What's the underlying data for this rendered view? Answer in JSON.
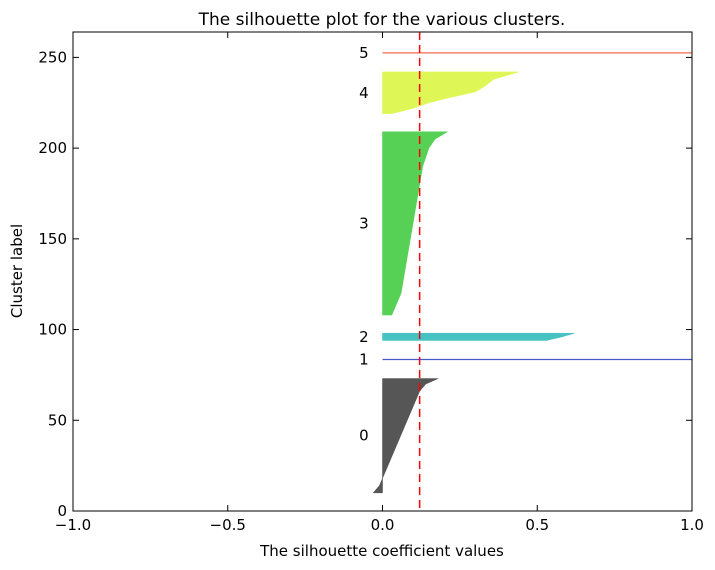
{
  "chart_data": {
    "type": "area",
    "title": "The silhouette plot for the various clusters.",
    "xlabel": "The silhouette coefficient values",
    "ylabel": "Cluster label",
    "xlim": [
      -1.0,
      1.0
    ],
    "ylim": [
      0,
      264
    ],
    "xticks": [
      "−1.0",
      "−0.5",
      "0.0",
      "0.5",
      "1.0"
    ],
    "xtick_values": [
      -1.0,
      -0.5,
      0.0,
      0.5,
      1.0
    ],
    "yticks": [
      "0",
      "50",
      "100",
      "150",
      "200",
      "250"
    ],
    "ytick_values": [
      0,
      50,
      100,
      150,
      200,
      250
    ],
    "grid": false,
    "average_silhouette": 0.12,
    "average_line_color": "#ff0000",
    "series": [
      {
        "name": "0",
        "color": "#4d4d4d",
        "y": [
          10,
          14,
          18,
          22,
          26,
          30,
          34,
          38,
          42,
          46,
          50,
          54,
          58,
          62,
          66,
          70,
          73
        ],
        "x": [
          -0.03,
          -0.01,
          0.0,
          0.01,
          0.02,
          0.03,
          0.04,
          0.05,
          0.06,
          0.07,
          0.08,
          0.09,
          0.1,
          0.11,
          0.12,
          0.14,
          0.18
        ]
      },
      {
        "name": "1",
        "color": "#4758c7",
        "y": [
          83,
          84
        ],
        "x": [
          1.0,
          1.0
        ]
      },
      {
        "name": "2",
        "color": "#3dbfbf",
        "y": [
          94,
          96,
          98
        ],
        "x": [
          0.53,
          0.58,
          0.62
        ]
      },
      {
        "name": "3",
        "color": "#4dcf4d",
        "y": [
          108,
          112,
          120,
          130,
          140,
          150,
          160,
          170,
          180,
          190,
          195,
          200,
          205,
          209
        ],
        "x": [
          0.03,
          0.04,
          0.06,
          0.07,
          0.08,
          0.09,
          0.1,
          0.11,
          0.12,
          0.13,
          0.14,
          0.15,
          0.17,
          0.21
        ]
      },
      {
        "name": "4",
        "color": "#ddf74d",
        "y": [
          219,
          222,
          225,
          228,
          231,
          234,
          238,
          242
        ],
        "x": [
          0.03,
          0.1,
          0.15,
          0.22,
          0.3,
          0.33,
          0.36,
          0.44
        ]
      },
      {
        "name": "5",
        "color": "#ef6a4d",
        "y": [
          252,
          253
        ],
        "x": [
          1.0,
          1.0
        ]
      }
    ]
  }
}
